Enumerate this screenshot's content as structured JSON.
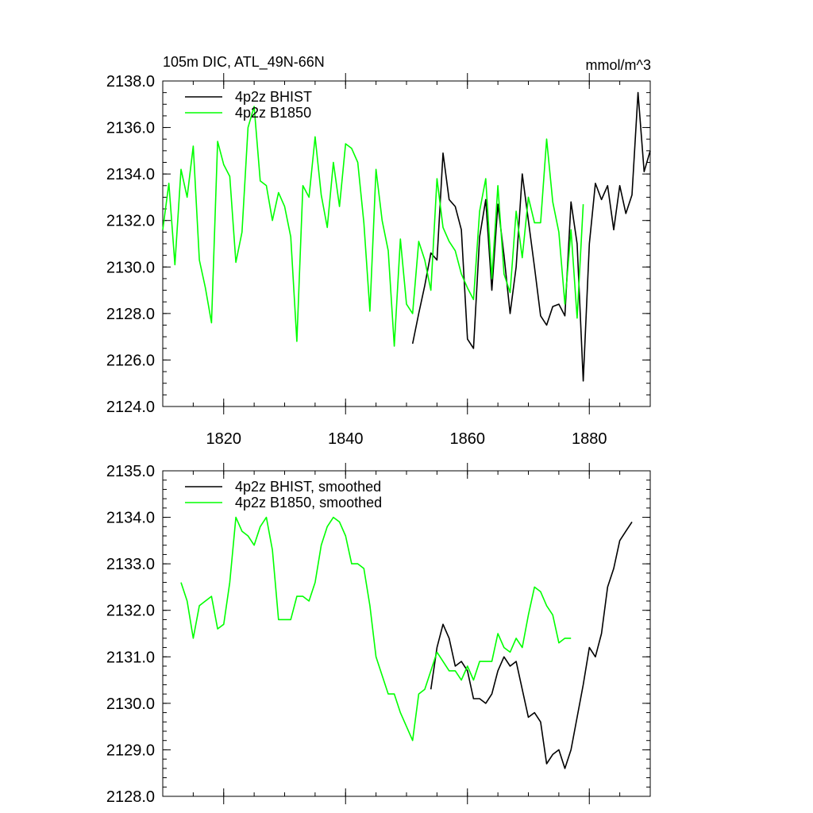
{
  "figure": {
    "title": "105m DIC, ATL_49N-66N",
    "units": "mmol/m^3"
  },
  "chart_data": [
    {
      "type": "line",
      "title": "105m DIC, ATL_49N-66N",
      "units": "mmol/m^3",
      "xlim": [
        1810,
        1890
      ],
      "ylim": [
        2124,
        2138
      ],
      "xticks": [
        1820,
        1840,
        1860,
        1880
      ],
      "yticks": [
        2124,
        2126,
        2128,
        2130,
        2132,
        2134,
        2136,
        2138
      ],
      "ytick_labels": [
        "2124.0",
        "2126.0",
        "2128.0",
        "2130.0",
        "2132.0",
        "2134.0",
        "2136.0",
        "2138.0"
      ],
      "legend_position": "top-left",
      "series": [
        {
          "name": "4p2z BHIST",
          "color": "#000000",
          "x": [
            1851,
            1852,
            1853,
            1854,
            1855,
            1856,
            1857,
            1858,
            1859,
            1860,
            1861,
            1862,
            1863,
            1864,
            1865,
            1866,
            1867,
            1868,
            1869,
            1870,
            1871,
            1872,
            1873,
            1874,
            1875,
            1876,
            1877,
            1878,
            1879,
            1880,
            1881,
            1882,
            1883,
            1884,
            1885,
            1886,
            1887,
            1888,
            1889,
            1890
          ],
          "values": [
            2126.7,
            2128.0,
            2129.2,
            2130.6,
            2130.3,
            2134.9,
            2132.9,
            2132.6,
            2131.6,
            2126.9,
            2126.5,
            2131.3,
            2132.9,
            2129.0,
            2132.7,
            2130.5,
            2128.0,
            2130.0,
            2134.0,
            2132.0,
            2130.0,
            2127.9,
            2127.5,
            2128.3,
            2128.4,
            2127.9,
            2132.8,
            2131.0,
            2125.1,
            2131.0,
            2133.6,
            2132.9,
            2133.5,
            2131.6,
            2133.5,
            2132.3,
            2133.1,
            2137.5,
            2134.1,
            2135.0
          ]
        },
        {
          "name": "4p2z B1850",
          "color": "#00ff00",
          "x": [
            1810,
            1811,
            1812,
            1813,
            1814,
            1815,
            1816,
            1817,
            1818,
            1819,
            1820,
            1821,
            1822,
            1823,
            1824,
            1825,
            1826,
            1827,
            1828,
            1829,
            1830,
            1831,
            1832,
            1833,
            1834,
            1835,
            1836,
            1837,
            1838,
            1839,
            1840,
            1841,
            1842,
            1843,
            1844,
            1845,
            1846,
            1847,
            1848,
            1849,
            1850,
            1851,
            1852,
            1853,
            1854,
            1855,
            1856,
            1857,
            1858,
            1859,
            1860,
            1861,
            1862,
            1863,
            1864,
            1865,
            1866,
            1867,
            1868,
            1869,
            1870,
            1871,
            1872,
            1873,
            1874,
            1875,
            1876,
            1877,
            1878,
            1879
          ],
          "values": [
            2131.6,
            2133.6,
            2130.1,
            2134.2,
            2133.0,
            2135.2,
            2130.3,
            2129.1,
            2127.6,
            2135.4,
            2134.4,
            2133.9,
            2130.2,
            2131.5,
            2136.0,
            2136.9,
            2133.7,
            2133.5,
            2132.0,
            2133.2,
            2132.6,
            2131.3,
            2126.8,
            2133.5,
            2133.0,
            2135.6,
            2133.1,
            2131.7,
            2134.5,
            2132.6,
            2135.3,
            2135.1,
            2134.5,
            2131.9,
            2128.1,
            2134.2,
            2132.0,
            2130.7,
            2126.6,
            2131.2,
            2128.4,
            2128.0,
            2131.1,
            2130.3,
            2129.0,
            2133.8,
            2131.7,
            2131.1,
            2130.7,
            2129.7,
            2129.1,
            2128.6,
            2132.4,
            2133.8,
            2129.5,
            2133.5,
            2129.7,
            2128.9,
            2132.4,
            2130.4,
            2133.0,
            2131.9,
            2131.9,
            2135.5,
            2132.8,
            2131.5,
            2128.4,
            2131.6,
            2127.8,
            2132.7
          ]
        }
      ]
    },
    {
      "type": "line",
      "xlim": [
        1810,
        1890
      ],
      "ylim": [
        2128,
        2135
      ],
      "xticks": [
        1820,
        1840,
        1860,
        1880
      ],
      "yticks": [
        2128,
        2129,
        2130,
        2131,
        2132,
        2133,
        2134,
        2135
      ],
      "ytick_labels": [
        "2128.0",
        "2129.0",
        "2130.0",
        "2131.0",
        "2132.0",
        "2133.0",
        "2134.0",
        "2135.0"
      ],
      "legend_position": "top-left",
      "series": [
        {
          "name": "4p2z BHIST, smoothed",
          "color": "#000000",
          "x": [
            1854,
            1855,
            1856,
            1857,
            1858,
            1859,
            1860,
            1861,
            1862,
            1863,
            1864,
            1865,
            1866,
            1867,
            1868,
            1869,
            1870,
            1871,
            1872,
            1873,
            1874,
            1875,
            1876,
            1877,
            1878,
            1879,
            1880,
            1881,
            1882,
            1883,
            1884,
            1885,
            1886,
            1887
          ],
          "values": [
            2130.3,
            2131.2,
            2131.7,
            2131.4,
            2130.8,
            2130.9,
            2130.7,
            2130.1,
            2130.1,
            2130.0,
            2130.2,
            2130.7,
            2131.0,
            2130.8,
            2130.9,
            2130.3,
            2129.7,
            2129.8,
            2129.6,
            2128.7,
            2128.9,
            2129.0,
            2128.6,
            2129.0,
            2129.7,
            2130.4,
            2131.2,
            2131.0,
            2131.5,
            2132.5,
            2132.9,
            2133.5,
            2133.7,
            2133.9
          ]
        },
        {
          "name": "4p2z B1850, smoothed",
          "color": "#00ff00",
          "x": [
            1813,
            1814,
            1815,
            1816,
            1817,
            1818,
            1819,
            1820,
            1821,
            1822,
            1823,
            1824,
            1825,
            1826,
            1827,
            1828,
            1829,
            1830,
            1831,
            1832,
            1833,
            1834,
            1835,
            1836,
            1837,
            1838,
            1839,
            1840,
            1841,
            1842,
            1843,
            1844,
            1845,
            1846,
            1847,
            1848,
            1849,
            1850,
            1851,
            1852,
            1853,
            1854,
            1855,
            1856,
            1857,
            1858,
            1859,
            1860,
            1861,
            1862,
            1863,
            1864,
            1865,
            1866,
            1867,
            1868,
            1869,
            1870,
            1871,
            1872,
            1873,
            1874,
            1875,
            1876,
            1877
          ],
          "values": [
            2132.6,
            2132.2,
            2131.4,
            2132.1,
            2132.2,
            2132.3,
            2131.6,
            2131.7,
            2132.6,
            2134.0,
            2133.7,
            2133.6,
            2133.4,
            2133.8,
            2134.0,
            2133.3,
            2131.8,
            2131.8,
            2131.8,
            2132.3,
            2132.3,
            2132.2,
            2132.6,
            2133.4,
            2133.8,
            2134.0,
            2133.9,
            2133.6,
            2133.0,
            2133.0,
            2132.9,
            2132.1,
            2131.0,
            2130.6,
            2130.2,
            2130.2,
            2129.8,
            2129.5,
            2129.2,
            2130.2,
            2130.3,
            2130.7,
            2131.1,
            2130.9,
            2130.7,
            2130.7,
            2130.5,
            2130.8,
            2130.5,
            2130.9,
            2130.9,
            2130.9,
            2131.5,
            2131.2,
            2131.1,
            2131.4,
            2131.2,
            2131.9,
            2132.5,
            2132.4,
            2132.1,
            2131.9,
            2131.3,
            2131.4,
            2131.4
          ]
        }
      ]
    }
  ]
}
